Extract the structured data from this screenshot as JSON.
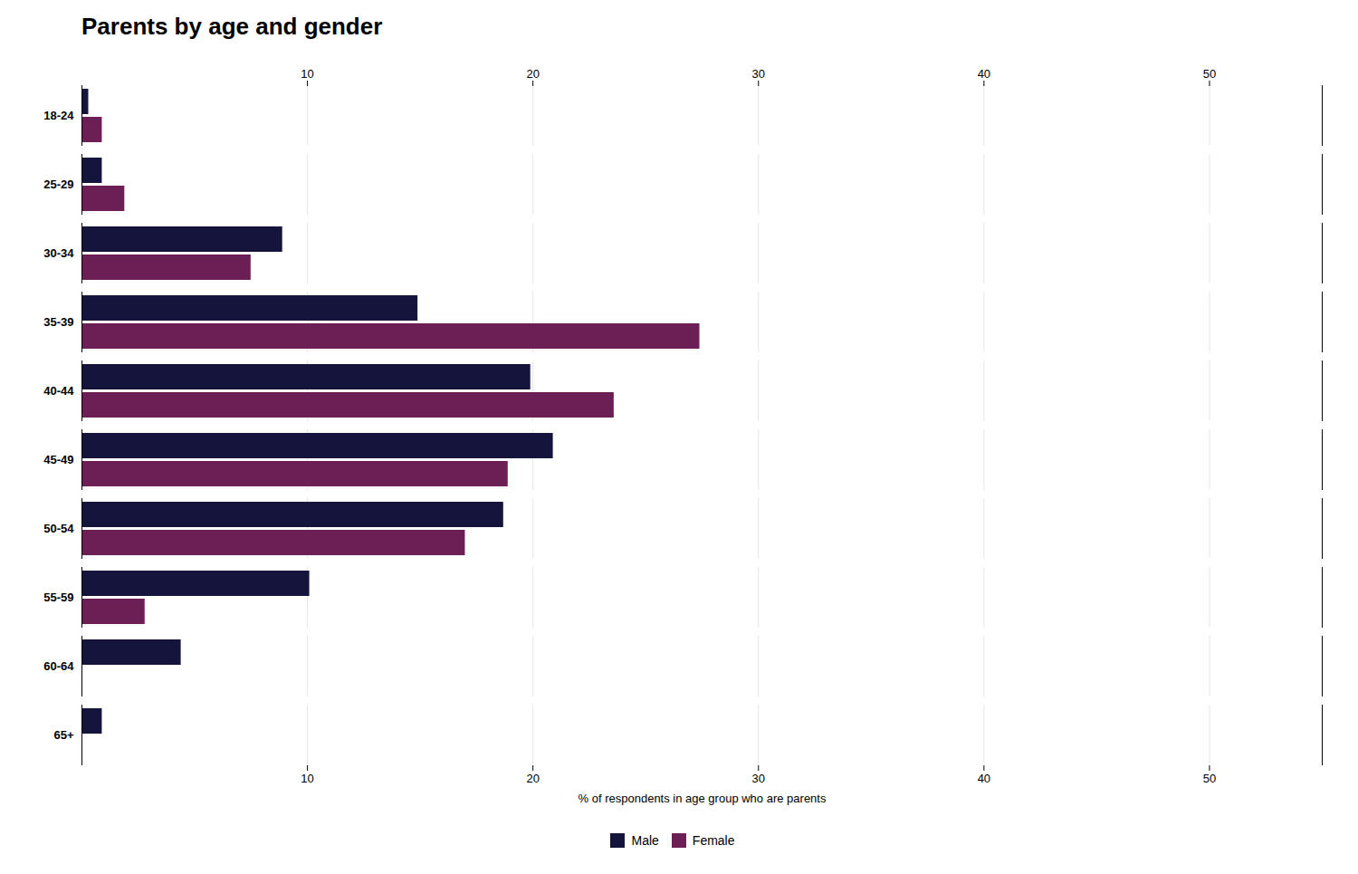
{
  "chart_data": {
    "type": "bar",
    "orientation": "horizontal",
    "title": "Parents by age and gender",
    "xlabel": "% of respondents in age group who are parents",
    "categories": [
      "18-24",
      "25-29",
      "30-34",
      "35-39",
      "40-44",
      "45-49",
      "50-54",
      "55-59",
      "60-64",
      "65+"
    ],
    "series": [
      {
        "name": "Male",
        "color": "#14143c",
        "values": [
          0.3,
          0.9,
          8.9,
          14.9,
          19.9,
          20.9,
          18.7,
          10.1,
          4.4,
          0.9
        ]
      },
      {
        "name": "Female",
        "color": "#6b1f55",
        "values": [
          0.9,
          1.9,
          7.5,
          27.4,
          23.6,
          18.9,
          17.0,
          2.8,
          0.0,
          0.0
        ]
      }
    ],
    "xlim": [
      0,
      55
    ],
    "xticks": [
      10,
      20,
      30,
      40,
      50
    ],
    "grid": true,
    "legend": "bottom"
  }
}
